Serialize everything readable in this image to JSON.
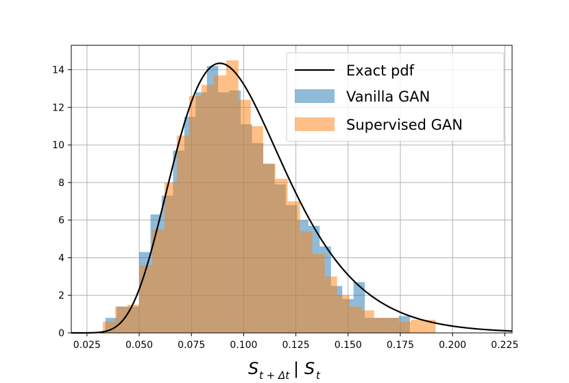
{
  "chart_data": {
    "type": "bar",
    "xlabel": "S_{t+Δt} | S_t",
    "ylabel": "",
    "xlim": [
      0.0175,
      0.2285
    ],
    "ylim": [
      0,
      15.3
    ],
    "xticks": [
      0.025,
      0.05,
      0.075,
      0.1,
      0.125,
      0.15,
      0.175,
      0.2,
      0.225
    ],
    "xtick_labels": [
      "0.025",
      "0.050",
      "0.075",
      "0.100",
      "0.125",
      "0.150",
      "0.175",
      "0.200",
      "0.225"
    ],
    "yticks": [
      0,
      2,
      4,
      6,
      8,
      10,
      12,
      14
    ],
    "ytick_labels": [
      "0",
      "2",
      "4",
      "6",
      "8",
      "10",
      "12",
      "14"
    ],
    "grid": true,
    "legend_position": "top-right",
    "series": [
      {
        "name": "Vanilla GAN",
        "kind": "histogram",
        "color": "#1f77b4",
        "alpha": 0.5,
        "bin_edges": [
          0.0338,
          0.0392,
          0.0446,
          0.05,
          0.0554,
          0.0608,
          0.0662,
          0.0716,
          0.077,
          0.0824,
          0.0878,
          0.0932,
          0.0986,
          0.104,
          0.1094,
          0.1148,
          0.1202,
          0.1256,
          0.131,
          0.1364,
          0.1418,
          0.1472,
          0.1526,
          0.158,
          0.1634,
          0.1688,
          0.1742,
          0.1796,
          0.185
        ],
        "values": [
          0.8,
          1.4,
          1.4,
          4.3,
          6.3,
          7.3,
          9.7,
          11.5,
          12.8,
          14.2,
          12.8,
          12.9,
          11.1,
          10.1,
          9.0,
          7.9,
          6.8,
          6.0,
          5.7,
          4.6,
          2.5,
          1.8,
          2.7,
          0.8,
          0.8,
          0.8,
          0.9,
          0.0
        ]
      },
      {
        "name": "Supervised GAN",
        "kind": "histogram",
        "color": "#ff7f0e",
        "alpha": 0.5,
        "bin_edges": [
          0.0326,
          0.0385,
          0.0444,
          0.0503,
          0.0562,
          0.0621,
          0.068,
          0.0739,
          0.0798,
          0.0857,
          0.0916,
          0.0975,
          0.1034,
          0.1093,
          0.1152,
          0.1211,
          0.127,
          0.1329,
          0.1388,
          0.1447,
          0.1506,
          0.1565,
          0.1624,
          0.1683,
          0.1742,
          0.1801,
          0.186,
          0.1919
        ],
        "values": [
          0.6,
          1.4,
          1.5,
          3.6,
          5.5,
          8.0,
          10.5,
          12.6,
          13.2,
          13.7,
          14.5,
          12.4,
          11.0,
          9.0,
          8.2,
          7.0,
          5.4,
          4.2,
          3.0,
          2.0,
          1.4,
          1.2,
          0.8,
          0.8,
          0.6,
          0.7,
          0.7
        ]
      }
    ],
    "line_series": {
      "name": "Exact pdf",
      "color": "#000000",
      "lognormal_mu": -2.3333,
      "lognormal_sigma": 0.3,
      "x_range": [
        0.0175,
        0.2285
      ]
    },
    "legend": [
      "Exact pdf",
      "Vanilla GAN",
      "Supervised GAN"
    ]
  }
}
